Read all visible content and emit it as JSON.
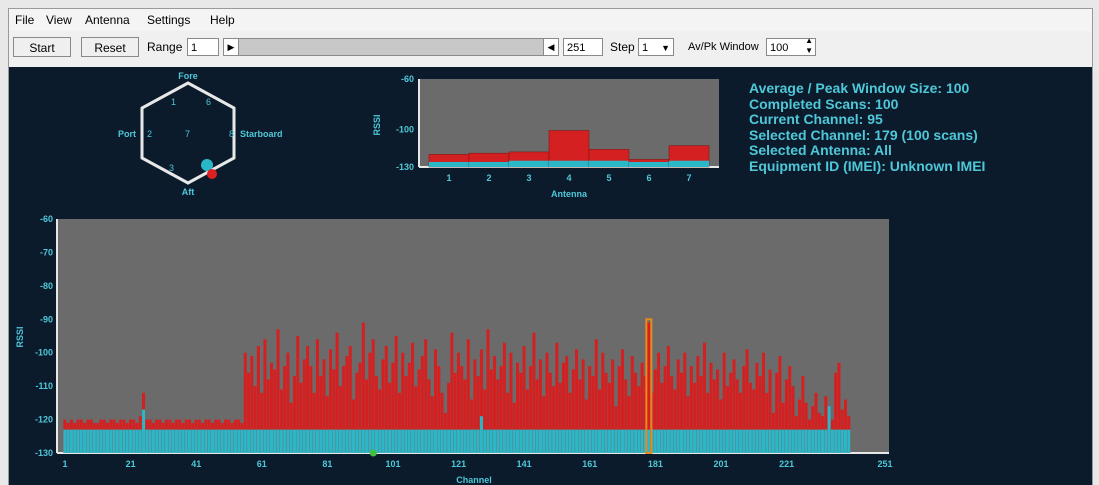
{
  "menu": [
    "File",
    "View",
    "Antenna",
    "Settings",
    "Help"
  ],
  "toolbar": {
    "start_label": "Start",
    "reset_label": "Reset",
    "range_label": "Range",
    "range_value": "1",
    "range_end_value": "251",
    "step_label": "Step",
    "step_value": "1",
    "window_label": "Av/Pk Window",
    "window_value": "100"
  },
  "hexagon": {
    "fore": "Fore",
    "aft": "Aft",
    "port": "Port",
    "starboard": "Starboard",
    "antenna_labels": [
      "1",
      "6",
      "2",
      "7",
      "8",
      "3"
    ]
  },
  "info_lines": [
    "Average / Peak Window Size: 100",
    "Completed Scans: 100",
    "Current Channel: 95",
    "Selected Channel: 179 (100 scans)",
    "Selected Antenna: All",
    "Equipment ID (IMEI): Unknown IMEI"
  ],
  "colors": {
    "peak": "#d42020",
    "average": "#2ab8c8",
    "plot_bg": "#6b6b6b",
    "label": "#4ec8d8",
    "selected": "#e88a1a",
    "current": "#40c040"
  },
  "chart_data": [
    {
      "type": "bar",
      "title": "",
      "xlabel": "Antenna",
      "ylabel": "RSSI",
      "ylim": [
        -130,
        -60
      ],
      "yticks": [
        -60,
        -100,
        -130
      ],
      "categories": [
        "1",
        "2",
        "3",
        "4",
        "5",
        "6",
        "7"
      ],
      "series": [
        {
          "name": "Peak",
          "values": [
            -120,
            -119,
            -118,
            -101,
            -116,
            -124,
            -113
          ]
        },
        {
          "name": "Average",
          "values": [
            -126,
            -126,
            -125,
            -125,
            -125,
            -126,
            -125
          ]
        }
      ]
    },
    {
      "type": "bar",
      "title": "",
      "xlabel": "Channel",
      "ylabel": "RSSI",
      "ylim": [
        -130,
        -60
      ],
      "yticks": [
        -60,
        -70,
        -80,
        -90,
        -100,
        -110,
        -120,
        -130
      ],
      "xticks": [
        1,
        21,
        41,
        61,
        81,
        101,
        121,
        141,
        161,
        181,
        201,
        221,
        251
      ],
      "x_range": [
        1,
        251
      ],
      "selected_channel": 179,
      "current_channel": 95,
      "series": [
        {
          "name": "Peak",
          "values": [
            -120,
            -121,
            -120,
            -121,
            -120,
            -120,
            -121,
            -120,
            -120,
            -121,
            -121,
            -120,
            -120,
            -121,
            -120,
            -120,
            -121,
            -120,
            -120,
            -121,
            -120,
            -120,
            -121,
            -119,
            -112,
            -120,
            -120,
            -121,
            -120,
            -120,
            -121,
            -120,
            -120,
            -121,
            -120,
            -120,
            -121,
            -120,
            -120,
            -121,
            -120,
            -120,
            -121,
            -120,
            -120,
            -121,
            -120,
            -120,
            -121,
            -120,
            -120,
            -121,
            -120,
            -120,
            -121,
            -100,
            -106,
            -101,
            -110,
            -98,
            -112,
            -96,
            -108,
            -103,
            -105,
            -93,
            -111,
            -104,
            -100,
            -115,
            -107,
            -95,
            -109,
            -102,
            -98,
            -104,
            -112,
            -96,
            -107,
            -102,
            -113,
            -99,
            -105,
            -94,
            -110,
            -104,
            -101,
            -98,
            -114,
            -106,
            -103,
            -91,
            -108,
            -100,
            -96,
            -107,
            -111,
            -102,
            -98,
            -109,
            -103,
            -95,
            -112,
            -100,
            -107,
            -103,
            -97,
            -110,
            -105,
            -101,
            -96,
            -108,
            -113,
            -99,
            -104,
            -112,
            -118,
            -109,
            -94,
            -106,
            -100,
            -104,
            -108,
            -96,
            -114,
            -102,
            -107,
            -99,
            -111,
            -93,
            -105,
            -101,
            -108,
            -104,
            -97,
            -112,
            -100,
            -115,
            -103,
            -106,
            -98,
            -111,
            -104,
            -94,
            -108,
            -102,
            -113,
            -100,
            -106,
            -110,
            -97,
            -109,
            -103,
            -101,
            -112,
            -105,
            -99,
            -108,
            -102,
            -114,
            -104,
            -107,
            -96,
            -111,
            -100,
            -106,
            -109,
            -102,
            -116,
            -104,
            -99,
            -108,
            -113,
            -101,
            -106,
            -110,
            -103,
            -107,
            -91,
            -112,
            -105,
            -100,
            -109,
            -104,
            -98,
            -107,
            -111,
            -102,
            -106,
            -100,
            -113,
            -104,
            -109,
            -101,
            -107,
            -97,
            -112,
            -103,
            -108,
            -105,
            -114,
            -100,
            -110,
            -106,
            -102,
            -108,
            -112,
            -104,
            -99,
            -109,
            -111,
            -103,
            -107,
            -100,
            -112,
            -105,
            -118,
            -106,
            -101,
            -115,
            -108,
            -104,
            -110,
            -119,
            -114,
            -107,
            -115,
            -120,
            -116,
            -112,
            -118,
            -119,
            -113,
            -117,
            -120,
            -106,
            -103,
            -117,
            -114,
            -119
          ]
        },
        {
          "name": "Average",
          "values": [
            -123,
            -123,
            -123,
            -123,
            -123,
            -123,
            -123,
            -123,
            -123,
            -123,
            -123,
            -123,
            -123,
            -123,
            -123,
            -123,
            -123,
            -123,
            -123,
            -123,
            -123,
            -123,
            -123,
            -123,
            -117,
            -123,
            -123,
            -123,
            -123,
            -123,
            -123,
            -123,
            -123,
            -123,
            -123,
            -123,
            -123,
            -123,
            -123,
            -123,
            -123,
            -123,
            -123,
            -123,
            -123,
            -123,
            -123,
            -123,
            -123,
            -123,
            -123,
            -123,
            -123,
            -123,
            -123,
            -123,
            -123,
            -123,
            -123,
            -123,
            -123,
            -123,
            -123,
            -123,
            -123,
            -123,
            -123,
            -123,
            -123,
            -123,
            -123,
            -123,
            -123,
            -123,
            -123,
            -123,
            -123,
            -123,
            -123,
            -123,
            -123,
            -123,
            -123,
            -123,
            -123,
            -123,
            -123,
            -123,
            -123,
            -123,
            -123,
            -123,
            -123,
            -123,
            -123,
            -123,
            -123,
            -123,
            -123,
            -123,
            -123,
            -123,
            -123,
            -123,
            -123,
            -123,
            -123,
            -123,
            -123,
            -123,
            -123,
            -123,
            -123,
            -123,
            -123,
            -123,
            -123,
            -123,
            -123,
            -123,
            -123,
            -123,
            -123,
            -123,
            -123,
            -123,
            -123,
            -119,
            -123,
            -123,
            -123,
            -123,
            -123,
            -123,
            -123,
            -123,
            -123,
            -123,
            -123,
            -123,
            -123,
            -123,
            -123,
            -123,
            -123,
            -123,
            -123,
            -123,
            -123,
            -123,
            -123,
            -123,
            -123,
            -123,
            -123,
            -123,
            -123,
            -123,
            -123,
            -123,
            -123,
            -123,
            -123,
            -123,
            -123,
            -123,
            -123,
            -123,
            -123,
            -123,
            -123,
            -123,
            -123,
            -123,
            -123,
            -123,
            -123,
            -123,
            -123,
            -123,
            -123,
            -123,
            -123,
            -123,
            -123,
            -123,
            -123,
            -123,
            -123,
            -123,
            -123,
            -123,
            -123,
            -123,
            -123,
            -123,
            -123,
            -123,
            -123,
            -123,
            -123,
            -123,
            -123,
            -123,
            -123,
            -123,
            -123,
            -123,
            -123,
            -123,
            -123,
            -123,
            -123,
            -123,
            -123,
            -123,
            -123,
            -123,
            -123,
            -123,
            -123,
            -123,
            -123,
            -123,
            -123,
            -123,
            -123,
            -123,
            -123,
            -123,
            -123,
            -123,
            -123,
            -116,
            -123,
            -123,
            -123,
            -123,
            -123,
            -123,
            -123,
            -123,
            -123,
            -123,
            -123,
            -123,
            -123,
            -123,
            -123,
            -123,
            -123,
            -123,
            -123,
            -123,
            -123,
            -123,
            -123
          ]
        }
      ]
    }
  ]
}
